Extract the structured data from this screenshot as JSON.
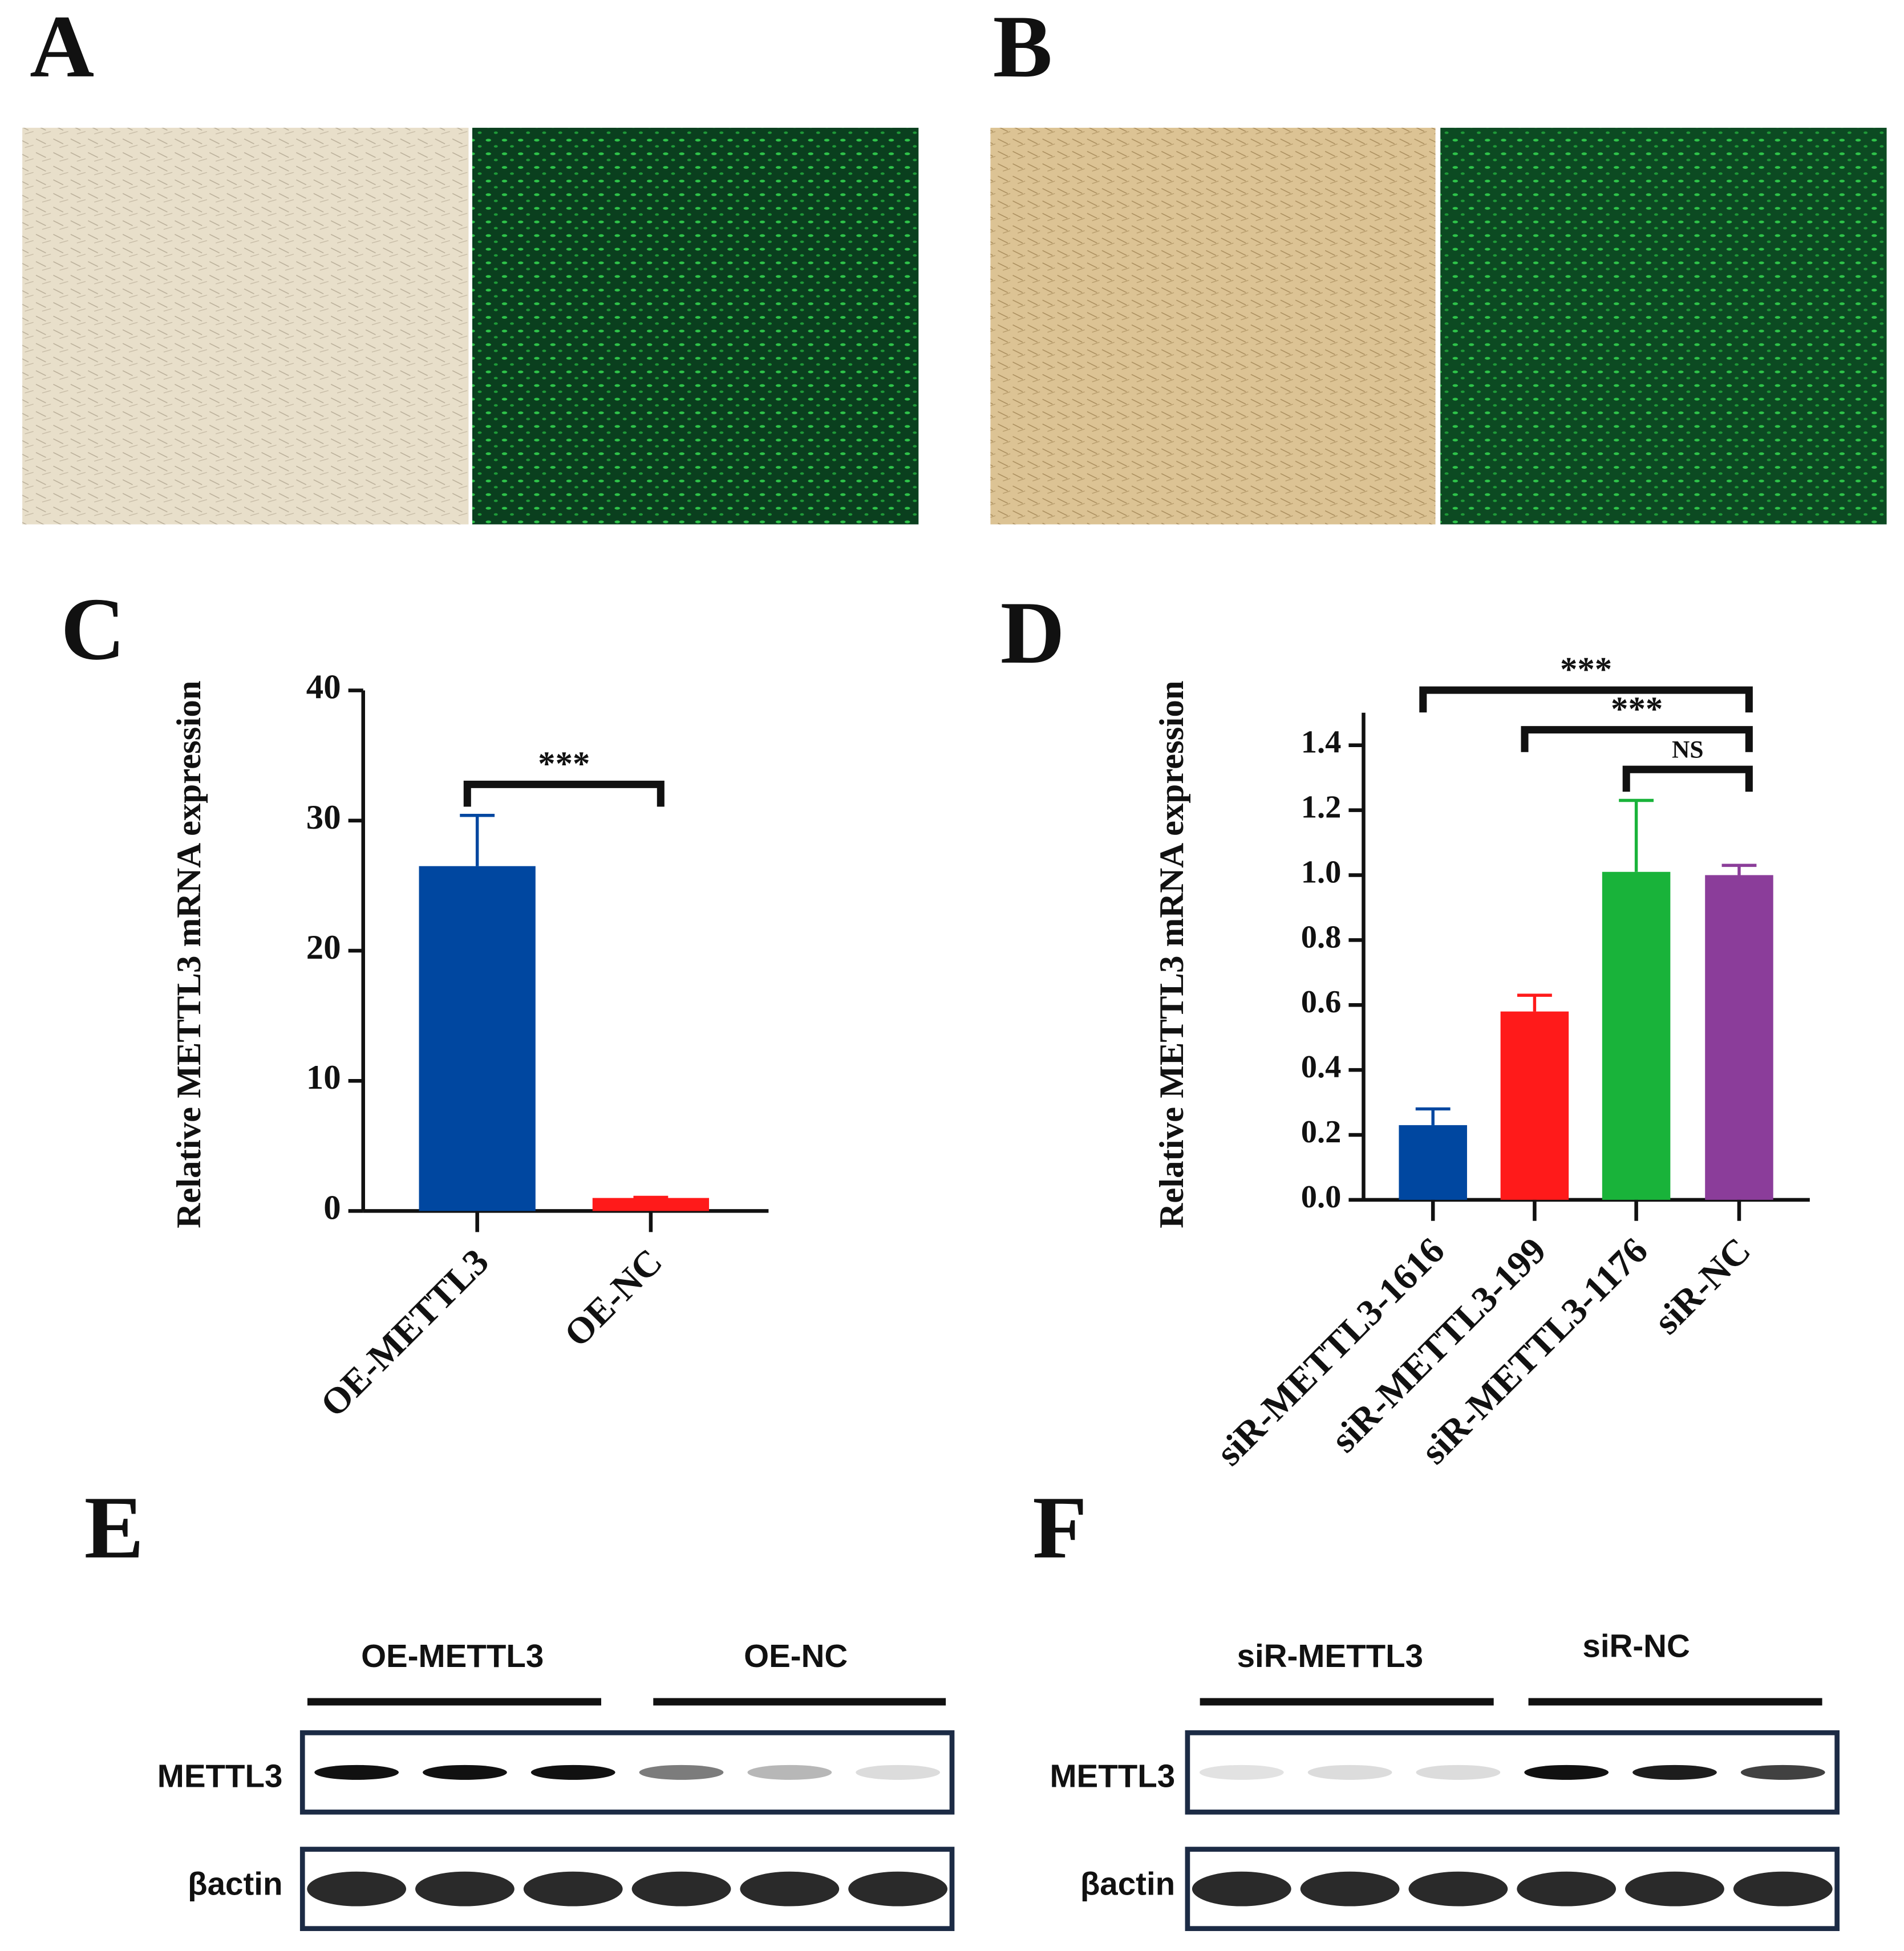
{
  "panel_labels": [
    "A",
    "B",
    "C",
    "D",
    "E",
    "F"
  ],
  "blots": [
    {
      "groups": [
        "OE-METTL3",
        "OE-NC"
      ],
      "rows": [
        "METTL3",
        "βactin"
      ]
    },
    {
      "groups": [
        "siR-METTL3",
        "siR-NC"
      ],
      "rows": [
        "METTL3",
        "βactin"
      ]
    }
  ],
  "chart_data": [
    {
      "type": "bar",
      "y_label": "Relative  METTL3 mRNA expression",
      "categories": [
        "OE-METTL3",
        "OE-NC"
      ],
      "values": [
        26.5,
        1.0
      ],
      "errors": [
        3.9,
        0.05
      ],
      "colors": [
        "#0047a0",
        "#ff1a1a"
      ],
      "ylim": [
        0,
        40
      ],
      "yticks": [
        0,
        10,
        20,
        30,
        40
      ],
      "annotations": [
        {
          "text": "***",
          "between": [
            "OE-METTL3",
            "OE-NC"
          ]
        }
      ]
    },
    {
      "type": "bar",
      "y_label": "Relative  METTL3 mRNA expression",
      "categories": [
        "siR-METTL3-1616",
        "siR-METTL3-199",
        "siR-METTL3-1176",
        "siR-NC"
      ],
      "values": [
        0.23,
        0.58,
        1.01,
        1.0
      ],
      "errors": [
        0.05,
        0.05,
        0.22,
        0.03
      ],
      "colors": [
        "#0047a0",
        "#ff1a1a",
        "#19b33a",
        "#8b3d9a"
      ],
      "ylim": [
        0,
        1.5
      ],
      "yticks": [
        {
          "value": 0,
          "label": "0.0"
        },
        0.2,
        0.4,
        0.6,
        0.8,
        {
          "value": 1,
          "label": "1.0"
        },
        1.2,
        1.4
      ],
      "annotations": [
        {
          "text": "***",
          "between": [
            "siR-METTL3-1616",
            "siR-NC"
          ]
        },
        {
          "text": "***",
          "between": [
            "siR-METTL3-199",
            "siR-NC"
          ]
        },
        {
          "text": "NS",
          "between": [
            "siR-METTL3-1176",
            "siR-NC"
          ]
        }
      ]
    }
  ]
}
